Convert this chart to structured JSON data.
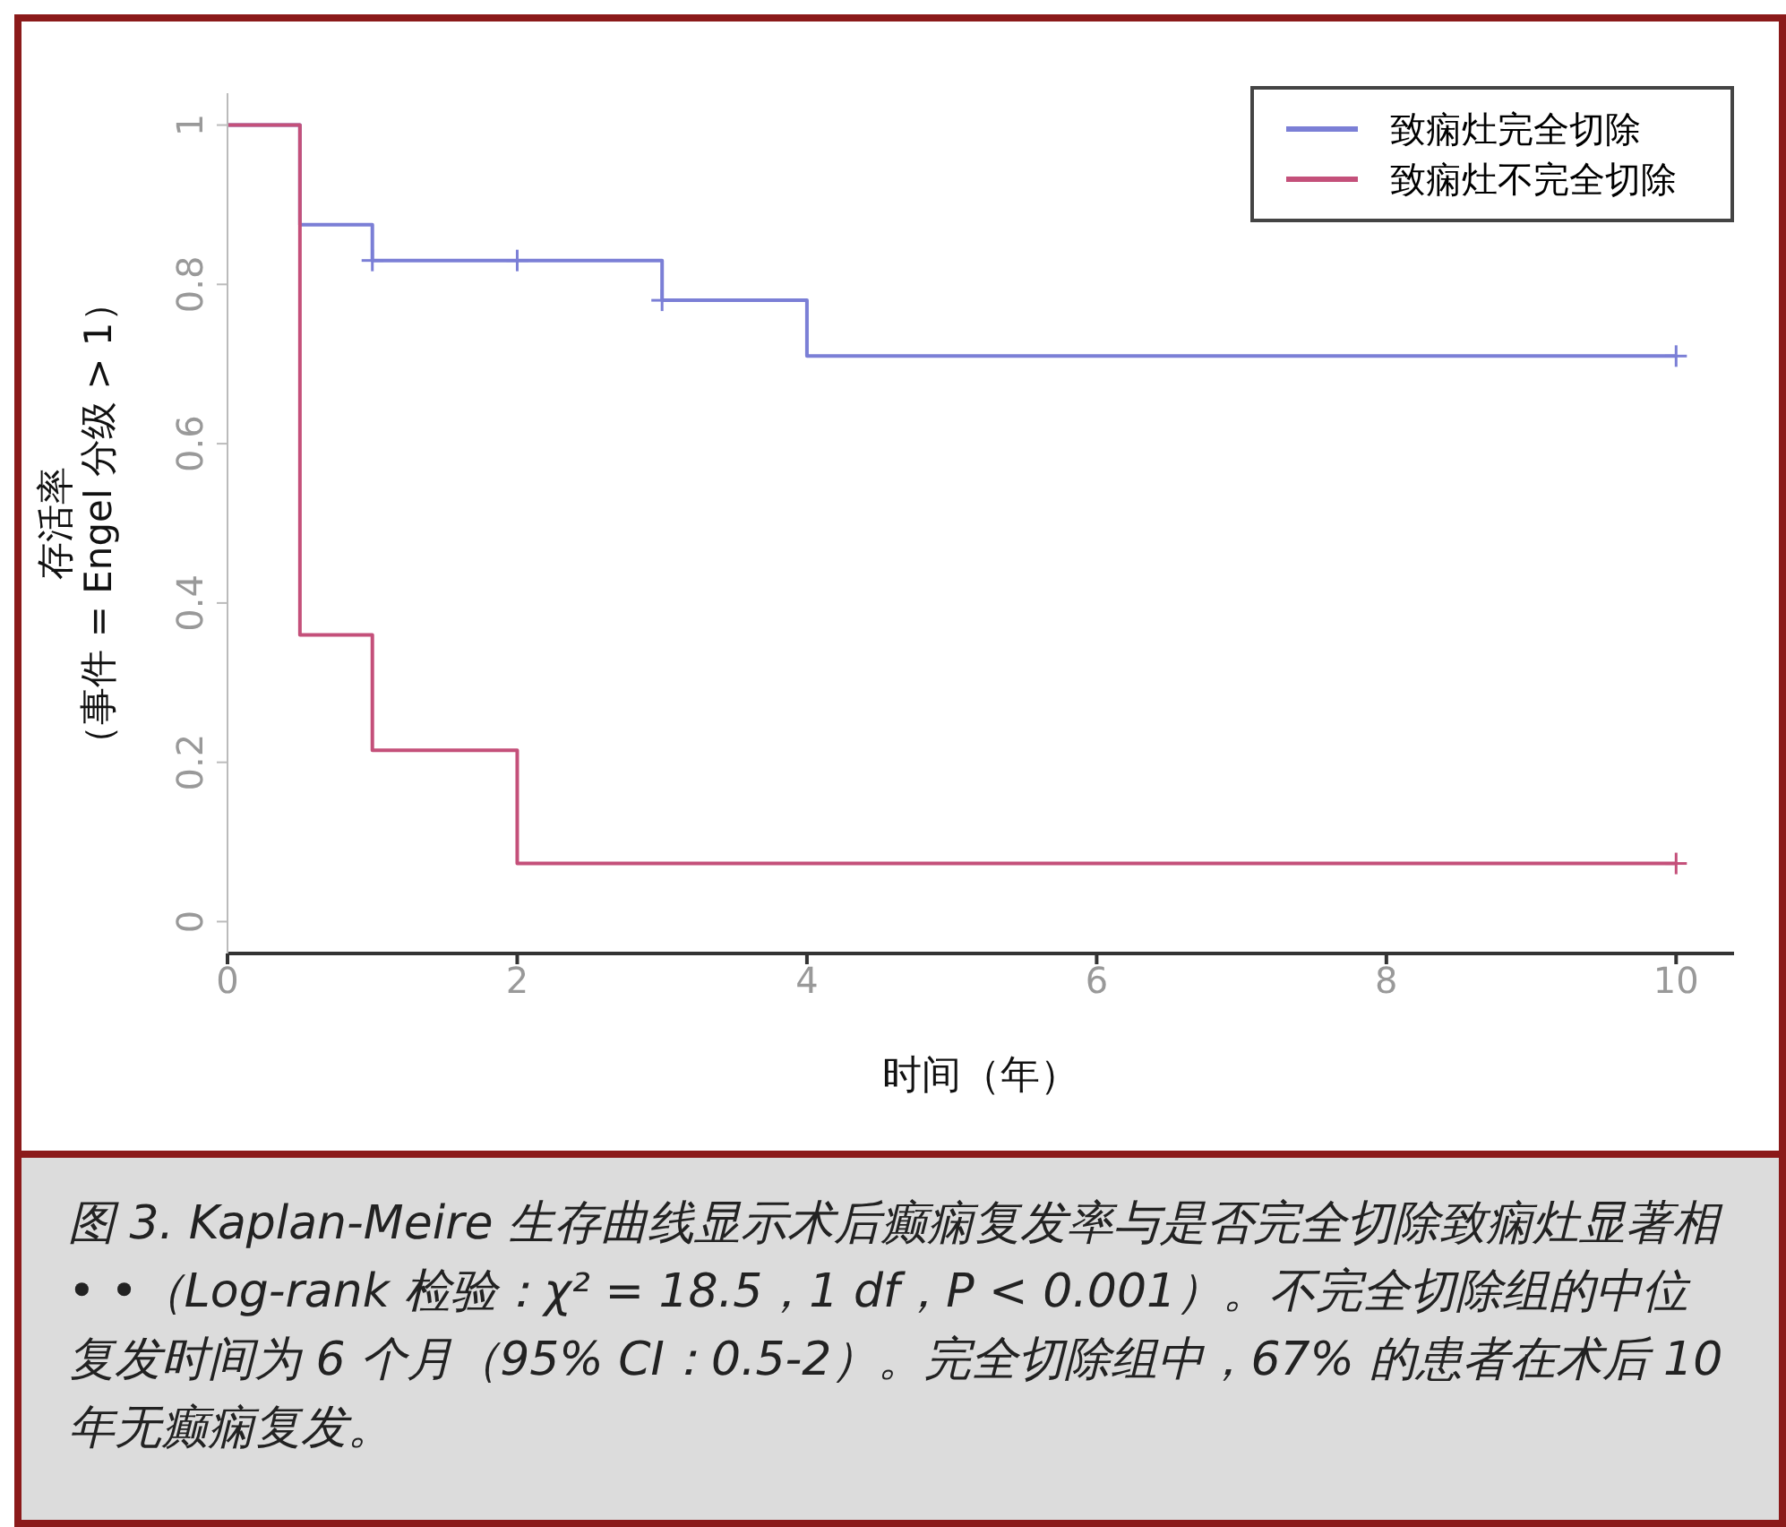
{
  "chart_data": {
    "type": "step",
    "xlabel": "时间（年）",
    "ylabel": "存活率（事件 = Engel 分级 > 1）",
    "xlim": [
      0,
      10.4
    ],
    "ylim": [
      -0.04,
      1.04
    ],
    "xticks": [
      0,
      2,
      4,
      6,
      8,
      10
    ],
    "yticks": [
      0,
      0.2,
      0.4,
      0.6,
      0.8,
      1
    ],
    "grid": false,
    "legend": "top right",
    "line_style": "solid",
    "series": [
      {
        "name": "致痫灶完全切除",
        "color": "#7b7fd6",
        "x": [
          0,
          0.5,
          1,
          3,
          4,
          10
        ],
        "values": [
          1,
          0.875,
          0.83,
          0.78,
          0.71,
          0.71
        ]
      },
      {
        "name": "致痫灶不完全切除",
        "color": "#c4507a",
        "x": [
          0,
          0.5,
          1,
          2,
          10
        ],
        "values": [
          1,
          0.36,
          0.215,
          0.073,
          0.073
        ]
      },
      {
        "type": "scatter",
        "marker": "cross",
        "color": "#7b7fd6",
        "x": [
          1,
          2,
          3,
          10
        ],
        "values": [
          0.83,
          0.83,
          0.78,
          0.71
        ]
      },
      {
        "type": "scatter",
        "marker": "cross",
        "color": "#c4507a",
        "x": [
          10
        ],
        "values": [
          0.073
        ]
      }
    ],
    "annotations": [
      "图 3. Kaplan-Meire 生存曲线显示术后癫痫复发率与是否完全切除致痫灶显著相• •（Log-rank 检验：χ² = 18.5，1 df，P < 0.001）。不完全切除组的中位复发时间为 6 个月（95% CI：0.5-2）。完全切除组中，67% 的患者在术后 10 年无癫痫复发。"
    ]
  }
}
